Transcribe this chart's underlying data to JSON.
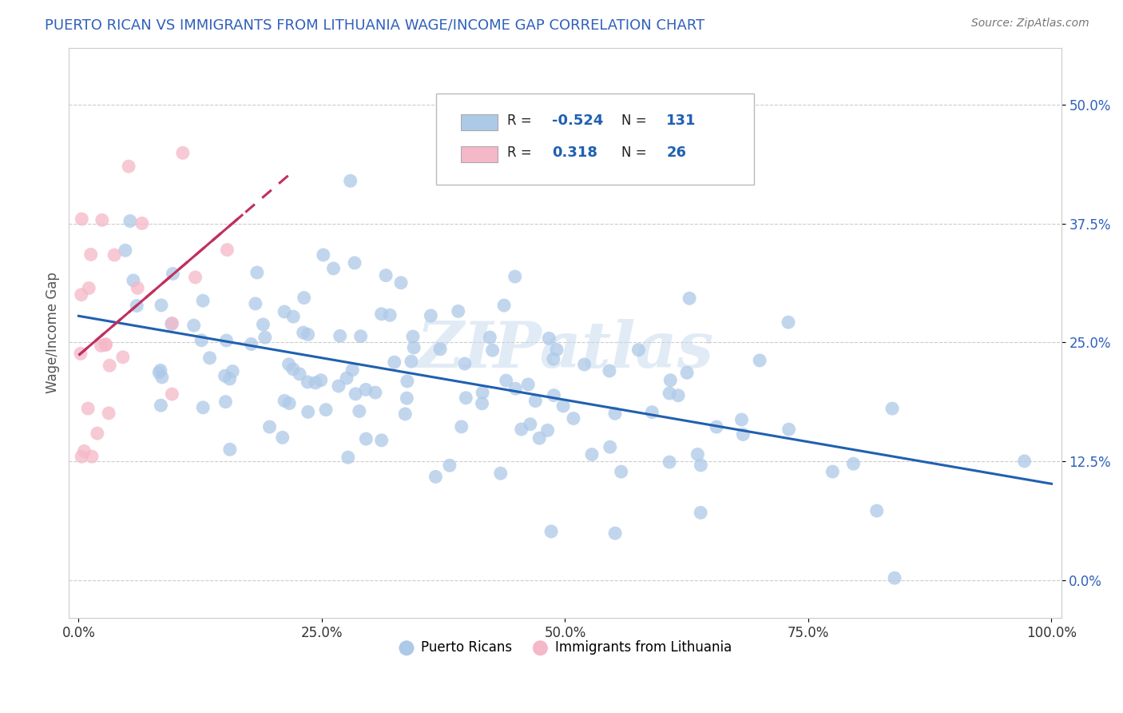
{
  "title": "PUERTO RICAN VS IMMIGRANTS FROM LITHUANIA WAGE/INCOME GAP CORRELATION CHART",
  "source": "Source: ZipAtlas.com",
  "ylabel": "Wage/Income Gap",
  "xlim": [
    -0.01,
    1.01
  ],
  "ylim": [
    -0.04,
    0.56
  ],
  "yticks": [
    0.0,
    0.125,
    0.25,
    0.375,
    0.5
  ],
  "ytick_labels": [
    "0.0%",
    "12.5%",
    "25.0%",
    "37.5%",
    "50.0%"
  ],
  "xticks": [
    0.0,
    0.25,
    0.5,
    0.75,
    1.0
  ],
  "xtick_labels": [
    "0.0%",
    "25.0%",
    "50.0%",
    "75.0%",
    "100.0%"
  ],
  "blue_R": -0.524,
  "blue_N": 131,
  "pink_R": 0.318,
  "pink_N": 26,
  "blue_color": "#adc9e8",
  "pink_color": "#f5b8c8",
  "blue_line_color": "#2060b0",
  "pink_line_color": "#c03060",
  "legend_label_blue": "Puerto Ricans",
  "legend_label_pink": "Immigrants from Lithuania",
  "watermark": "ZIPatlas",
  "background_color": "#ffffff",
  "grid_color": "#cccccc",
  "title_color": "#3060bb",
  "source_color": "#777777",
  "blue_seed": 42,
  "pink_seed": 7
}
